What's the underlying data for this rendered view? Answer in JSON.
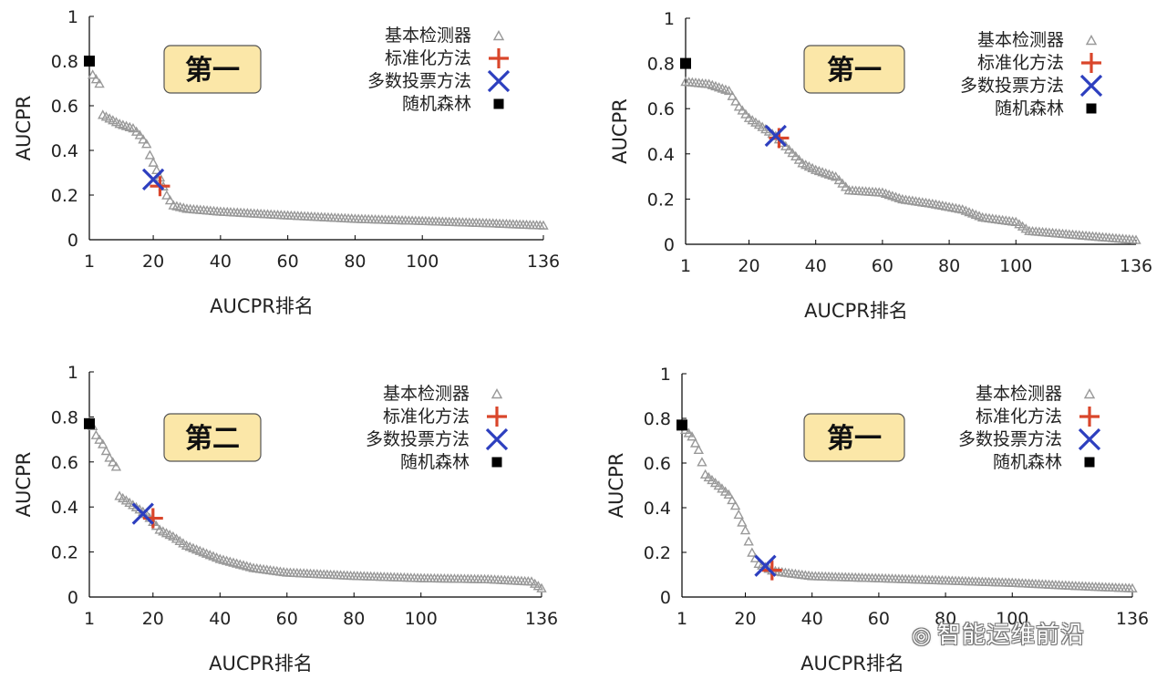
{
  "watermark": "智能运维前沿",
  "colors": {
    "detector": "#999999",
    "standardized": "#d9462b",
    "voting": "#2d3fbf",
    "forest": "#000000",
    "badge_fill": "#fbe7a8",
    "badge_stroke": "#555555"
  },
  "chart_data": [
    {
      "type": "scatter",
      "badge": "第一",
      "xlabel": "AUCPR排名",
      "ylabel": "AUCPR",
      "xlim": [
        1,
        136
      ],
      "ylim": [
        0,
        1
      ],
      "x_ticks": [
        "1",
        "20",
        "40",
        "60",
        "80",
        "100",
        "136"
      ],
      "y_ticks": [
        "0",
        "0.2",
        "0.4",
        "0.6",
        "0.8",
        "1"
      ],
      "legend_position": "top-right",
      "series": [
        {
          "name": "基本检测器",
          "marker": "triangle",
          "anchors": [
            [
              1,
              0.8
            ],
            [
              2,
              0.74
            ],
            [
              4,
              0.7
            ],
            [
              5,
              0.56
            ],
            [
              10,
              0.52
            ],
            [
              14,
              0.5
            ],
            [
              16,
              0.47
            ],
            [
              18,
              0.43
            ],
            [
              19,
              0.38
            ],
            [
              22,
              0.28
            ],
            [
              24,
              0.2
            ],
            [
              26,
              0.155
            ],
            [
              30,
              0.14
            ],
            [
              40,
              0.127
            ],
            [
              60,
              0.11
            ],
            [
              80,
              0.095
            ],
            [
              100,
              0.085
            ],
            [
              120,
              0.075
            ],
            [
              136,
              0.065
            ]
          ]
        },
        {
          "name": "标准化方法",
          "marker": "plus",
          "points": [
            [
              22,
              0.24
            ]
          ]
        },
        {
          "name": "多数投票方法",
          "marker": "x",
          "points": [
            [
              20,
              0.27
            ]
          ]
        },
        {
          "name": "随机森林",
          "marker": "square",
          "points": [
            [
              1,
              0.8
            ]
          ]
        }
      ]
    },
    {
      "type": "scatter",
      "badge": "第一",
      "xlabel": "AUCPR排名",
      "ylabel": "AUCPR",
      "xlim": [
        1,
        136
      ],
      "ylim": [
        0,
        1
      ],
      "x_ticks": [
        "1",
        "20",
        "40",
        "60",
        "80",
        "100",
        "136"
      ],
      "y_ticks": [
        "0",
        "0.2",
        "0.4",
        "0.6",
        "0.8",
        "1"
      ],
      "legend_position": "top-right",
      "series": [
        {
          "name": "基本检测器",
          "marker": "triangle",
          "anchors": [
            [
              1,
              0.72
            ],
            [
              8,
              0.71
            ],
            [
              14,
              0.68
            ],
            [
              17,
              0.61
            ],
            [
              20,
              0.56
            ],
            [
              24,
              0.52
            ],
            [
              28,
              0.48
            ],
            [
              32,
              0.42
            ],
            [
              36,
              0.36
            ],
            [
              40,
              0.33
            ],
            [
              46,
              0.3
            ],
            [
              50,
              0.24
            ],
            [
              60,
              0.23
            ],
            [
              66,
              0.2
            ],
            [
              75,
              0.18
            ],
            [
              84,
              0.155
            ],
            [
              90,
              0.12
            ],
            [
              100,
              0.1
            ],
            [
              104,
              0.06
            ],
            [
              120,
              0.04
            ],
            [
              136,
              0.02
            ]
          ]
        },
        {
          "name": "标准化方法",
          "marker": "plus",
          "points": [
            [
              29,
              0.47
            ]
          ]
        },
        {
          "name": "多数投票方法",
          "marker": "x",
          "points": [
            [
              28,
              0.48
            ]
          ]
        },
        {
          "name": "随机森林",
          "marker": "square",
          "points": [
            [
              1,
              0.8
            ]
          ]
        }
      ]
    },
    {
      "type": "scatter",
      "badge": "第二",
      "xlabel": "AUCPR排名",
      "ylabel": "AUCPR",
      "xlim": [
        1,
        136
      ],
      "ylim": [
        0,
        1
      ],
      "x_ticks": [
        "1",
        "20",
        "40",
        "60",
        "80",
        "100",
        "136"
      ],
      "y_ticks": [
        "0",
        "0.2",
        "0.4",
        "0.6",
        "0.8",
        "1"
      ],
      "legend_position": "top-right",
      "series": [
        {
          "name": "基本检测器",
          "marker": "triangle",
          "anchors": [
            [
              1,
              0.78
            ],
            [
              2,
              0.76
            ],
            [
              3,
              0.72
            ],
            [
              5,
              0.68
            ],
            [
              7,
              0.62
            ],
            [
              9,
              0.58
            ],
            [
              10,
              0.45
            ],
            [
              14,
              0.41
            ],
            [
              18,
              0.37
            ],
            [
              22,
              0.3
            ],
            [
              26,
              0.27
            ],
            [
              30,
              0.23
            ],
            [
              35,
              0.2
            ],
            [
              40,
              0.17
            ],
            [
              50,
              0.13
            ],
            [
              60,
              0.11
            ],
            [
              80,
              0.095
            ],
            [
              100,
              0.085
            ],
            [
              120,
              0.08
            ],
            [
              133,
              0.07
            ],
            [
              136,
              0.04
            ]
          ]
        },
        {
          "name": "标准化方法",
          "marker": "plus",
          "points": [
            [
              20,
              0.35
            ]
          ]
        },
        {
          "name": "多数投票方法",
          "marker": "x",
          "points": [
            [
              17,
              0.37
            ]
          ]
        },
        {
          "name": "随机森林",
          "marker": "square",
          "points": [
            [
              1,
              0.77
            ]
          ]
        }
      ]
    },
    {
      "type": "scatter",
      "badge": "第一",
      "xlabel": "AUCPR排名",
      "ylabel": "AUCPR",
      "xlim": [
        1,
        136
      ],
      "ylim": [
        0,
        1
      ],
      "x_ticks": [
        "1",
        "20",
        "40",
        "60",
        "80",
        "100",
        "136"
      ],
      "y_ticks": [
        "0",
        "0.2",
        "0.4",
        "0.6",
        "0.8",
        "1"
      ],
      "legend_position": "top-right",
      "series": [
        {
          "name": "基本检测器",
          "marker": "triangle",
          "anchors": [
            [
              1,
              0.77
            ],
            [
              2,
              0.75
            ],
            [
              4,
              0.72
            ],
            [
              6,
              0.66
            ],
            [
              8,
              0.55
            ],
            [
              12,
              0.5
            ],
            [
              15,
              0.46
            ],
            [
              17,
              0.41
            ],
            [
              18,
              0.37
            ],
            [
              20,
              0.3
            ],
            [
              22,
              0.2
            ],
            [
              24,
              0.15
            ],
            [
              28,
              0.12
            ],
            [
              32,
              0.11
            ],
            [
              40,
              0.095
            ],
            [
              60,
              0.085
            ],
            [
              80,
              0.075
            ],
            [
              100,
              0.065
            ],
            [
              120,
              0.05
            ],
            [
              136,
              0.04
            ]
          ]
        },
        {
          "name": "标准化方法",
          "marker": "plus",
          "points": [
            [
              28,
              0.12
            ]
          ]
        },
        {
          "name": "多数投票方法",
          "marker": "x",
          "points": [
            [
              26,
              0.14
            ]
          ]
        },
        {
          "name": "随机森林",
          "marker": "square",
          "points": [
            [
              1,
              0.77
            ]
          ]
        }
      ]
    }
  ]
}
